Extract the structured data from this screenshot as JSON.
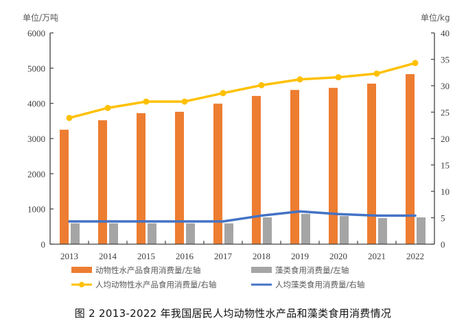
{
  "caption": "图 2   2013-2022 年我国居民人均动物性水产品和藻类食用消费情况",
  "chart_data": {
    "type": "bar",
    "title": "图 2   2013-2022 年我国居民人均动物性水产品和藻类食用消费情况",
    "categories": [
      "2013",
      "2014",
      "2015",
      "2016",
      "2017",
      "2018",
      "2019",
      "2020",
      "2021",
      "2022"
    ],
    "left_axis": {
      "label": "单位/万吨",
      "ylim": [
        0,
        6000
      ],
      "ticks": [
        "0",
        "1000",
        "2000",
        "3000",
        "4000",
        "5000",
        "6000"
      ]
    },
    "right_axis": {
      "label": "单位/kg",
      "ylim": [
        0,
        40
      ],
      "ticks": [
        "0",
        "5",
        "10",
        "15",
        "20",
        "25",
        "30",
        "35",
        "40"
      ]
    },
    "grid": false,
    "legend_position": "bottom",
    "series": [
      {
        "name": "动物性水产品食用消费量/左轴",
        "type": "bar",
        "axis": "left",
        "color": "#ED7D31",
        "values": [
          3250,
          3520,
          3720,
          3760,
          3990,
          4210,
          4380,
          4440,
          4560,
          4830
        ]
      },
      {
        "name": "藻类食用消费量/左轴",
        "type": "bar",
        "axis": "left",
        "color": "#A5A5A5",
        "values": [
          590,
          590,
          590,
          590,
          590,
          760,
          860,
          800,
          740,
          760
        ]
      },
      {
        "name": "人均动物性水产品食用消费量/右轴",
        "type": "line",
        "axis": "right",
        "color": "#FFC000",
        "marker": "circle",
        "values": [
          23.9,
          25.8,
          27.0,
          27.0,
          28.6,
          30.1,
          31.2,
          31.6,
          32.3,
          34.3
        ]
      },
      {
        "name": "人均藻类食用消费量/右轴",
        "type": "line",
        "axis": "right",
        "color": "#4472C4",
        "marker": "none",
        "values": [
          4.3,
          4.3,
          4.3,
          4.3,
          4.3,
          5.4,
          6.2,
          5.7,
          5.4,
          5.4
        ]
      }
    ]
  }
}
